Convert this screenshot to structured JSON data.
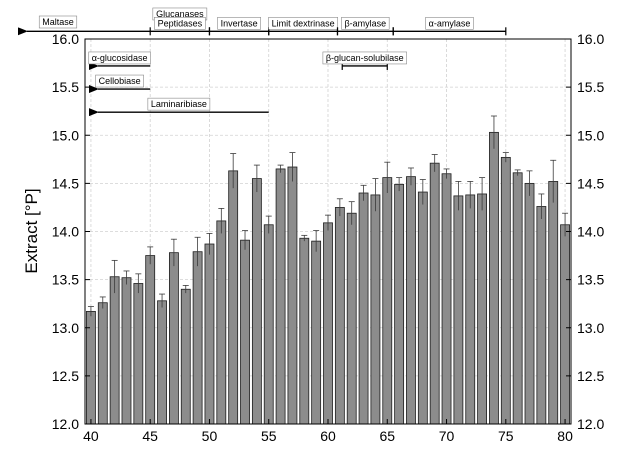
{
  "chart_data": {
    "type": "bar",
    "ylabel": "Extract [°P]",
    "xlabel": "",
    "ylim": [
      12.0,
      16.0
    ],
    "xlim": [
      39.5,
      80.5
    ],
    "x_ticks": [
      40,
      45,
      50,
      55,
      60,
      65,
      70,
      75,
      80
    ],
    "y_ticks": [
      12.0,
      12.5,
      13.0,
      13.5,
      14.0,
      14.5,
      15.0,
      15.5,
      16.0
    ],
    "y_tick_labels": [
      "12.0",
      "12.5",
      "13.0",
      "13.5",
      "14.0",
      "14.5",
      "15.0",
      "15.5",
      "16.0"
    ],
    "grid": true,
    "bar_color": "#8c8c8c",
    "x": [
      40,
      41,
      42,
      43,
      44,
      45,
      46,
      47,
      48,
      49,
      50,
      51,
      52,
      53,
      54,
      55,
      56,
      57,
      58,
      59,
      60,
      61,
      62,
      63,
      64,
      65,
      66,
      67,
      68,
      69,
      70,
      71,
      72,
      73,
      74,
      75,
      76,
      77,
      78,
      79,
      80
    ],
    "values": [
      13.17,
      13.26,
      13.53,
      13.52,
      13.46,
      13.75,
      13.28,
      13.78,
      13.4,
      13.79,
      13.87,
      14.11,
      14.63,
      13.91,
      14.55,
      14.07,
      14.65,
      14.67,
      13.93,
      13.9,
      14.09,
      14.25,
      14.19,
      14.4,
      14.38,
      14.56,
      14.49,
      14.57,
      14.41,
      14.71,
      14.6,
      14.37,
      14.38,
      14.39,
      15.03,
      14.77,
      14.61,
      14.5,
      14.26,
      14.52,
      14.07
    ],
    "errors": [
      0.05,
      0.06,
      0.17,
      0.07,
      0.1,
      0.09,
      0.07,
      0.14,
      0.04,
      0.15,
      0.11,
      0.13,
      0.18,
      0.1,
      0.14,
      0.09,
      0.04,
      0.15,
      0.03,
      0.11,
      0.08,
      0.09,
      0.12,
      0.08,
      0.17,
      0.16,
      0.07,
      0.09,
      0.13,
      0.09,
      0.05,
      0.15,
      0.14,
      0.17,
      0.17,
      0.05,
      0.03,
      0.13,
      0.13,
      0.22,
      0.12
    ],
    "annotations": [
      {
        "label": "Maltase",
        "from": 45,
        "to": 39.5,
        "y": 16.08,
        "style": "arrow-left",
        "label_pos": "outside-top-left"
      },
      {
        "label": "Glucanases",
        "from": 45,
        "to": 50,
        "y": 16.26,
        "style": "label-only"
      },
      {
        "label": "Peptidases",
        "from": 45,
        "to": 50,
        "y": 16.08,
        "style": "bar"
      },
      {
        "label": "Invertase",
        "from": 50,
        "to": 55,
        "y": 16.08,
        "style": "bar"
      },
      {
        "label": "Limit dextrinase",
        "from": 55,
        "to": 60.8,
        "y": 16.08,
        "style": "bar"
      },
      {
        "label": "β-amylase",
        "from": 60.8,
        "to": 65.5,
        "y": 16.08,
        "style": "bar"
      },
      {
        "label": "α-amylase",
        "from": 65.5,
        "to": 75,
        "y": 16.08,
        "style": "bar"
      },
      {
        "label": "α-glucosidase",
        "from": 45,
        "to": 39.5,
        "y": 15.72,
        "style": "arrow-left"
      },
      {
        "label": "β-glucan-solubilase",
        "from": 61.2,
        "to": 65,
        "y": 15.72,
        "style": "bar"
      },
      {
        "label": "Cellobiase",
        "from": 45,
        "to": 39.5,
        "y": 15.48,
        "style": "arrow-left"
      },
      {
        "label": "Laminaribiase",
        "from": 55,
        "to": 39.5,
        "y": 15.24,
        "style": "arrow-left"
      }
    ]
  }
}
